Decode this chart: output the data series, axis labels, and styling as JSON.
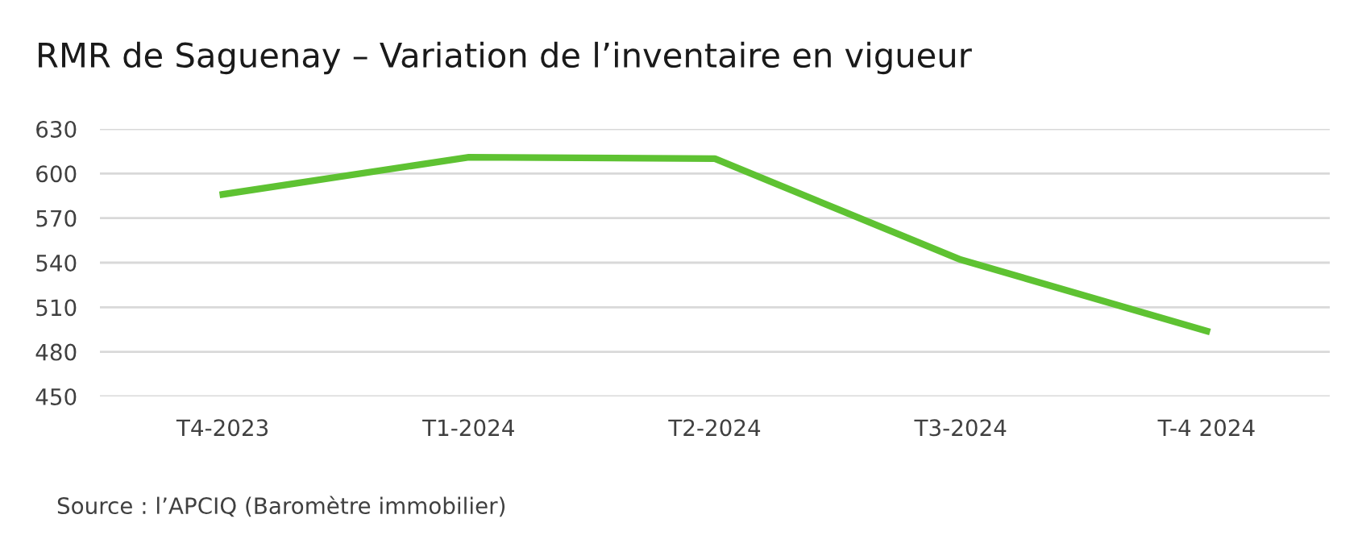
{
  "chart_data": {
    "type": "line",
    "title": "RMR de Saguenay – Variation de l’inventaire en vigueur",
    "categories": [
      "T4-2023",
      "T1-2024",
      "T2-2024",
      "T3-2024",
      "T-4 2024"
    ],
    "series": [
      {
        "color": "#5ec232",
        "values": [
          586,
          611,
          610,
          542,
          494
        ]
      }
    ],
    "ylim": [
      450,
      630
    ],
    "yticks": [
      450,
      480,
      510,
      540,
      570,
      600,
      630
    ],
    "grid": "y",
    "legend": false,
    "marker": "none",
    "line_style": "solid",
    "annotations": [
      "Source : l’APCIQ (Baromètre immobilier)"
    ]
  }
}
